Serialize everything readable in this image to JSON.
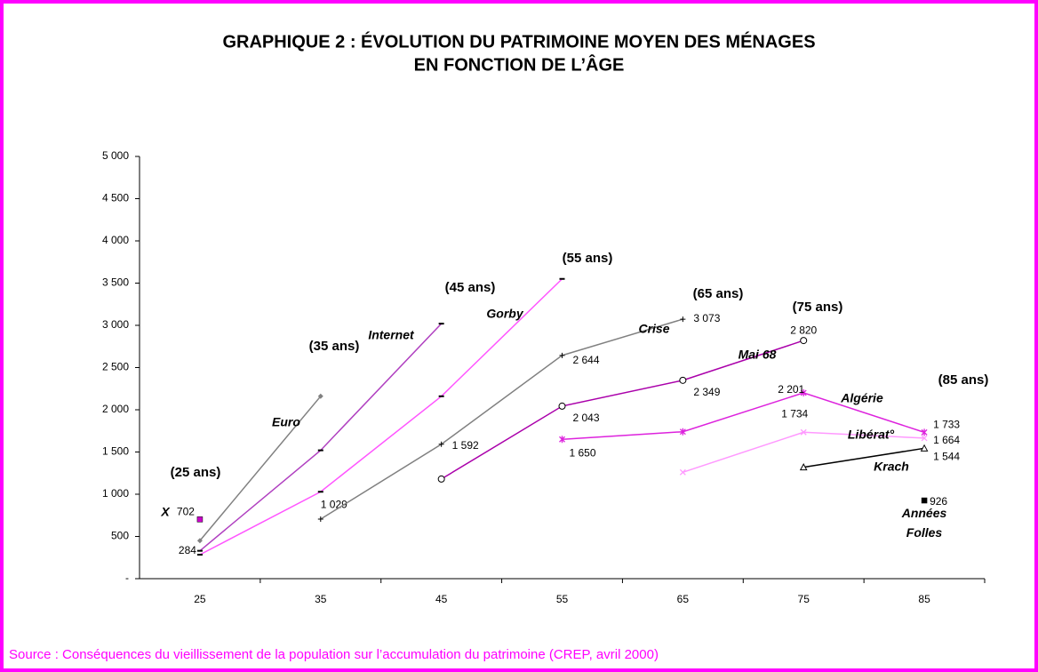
{
  "chart_data": {
    "type": "line",
    "title": [
      "GRAPHIQUE 2 : ÉVOLUTION DU PATRIMOINE MOYEN DES MÉNAGES",
      "EN FONCTION DE L’ÂGE"
    ],
    "categories": [
      "25",
      "35",
      "45",
      "55",
      "65",
      "75",
      "85"
    ],
    "ylim": [
      0,
      5000
    ],
    "yticks": [
      {
        "value": 0,
        "label": "-"
      },
      500,
      {
        "value": 1000,
        "label": "1 000"
      },
      {
        "value": 1500,
        "label": "1 500"
      },
      {
        "value": 2000,
        "label": "2 000"
      },
      {
        "value": 2500,
        "label": "2 500"
      },
      {
        "value": 3000,
        "label": "3 000"
      },
      {
        "value": 3500,
        "label": "3 500"
      },
      {
        "value": 4000,
        "label": "4 000"
      },
      {
        "value": 4500,
        "label": "4 500"
      },
      {
        "value": 5000,
        "label": "5 000"
      }
    ],
    "annotations": [
      "(25 ans)",
      "(35 ans)",
      "(45 ans)",
      "(55 ans)",
      "(65 ans)",
      "(75 ans)",
      "(85 ans)"
    ],
    "series": [
      {
        "name": "X",
        "color": "#cc00cc",
        "marker": "square",
        "values": [
          702,
          null,
          null,
          null,
          null,
          null,
          null
        ],
        "value_labels": [
          "702",
          null,
          null,
          null,
          null,
          null,
          null
        ]
      },
      {
        "name": "Euro",
        "color": "#808080",
        "marker": "diamond",
        "values": [
          450,
          2160,
          null,
          null,
          null,
          null,
          null
        ]
      },
      {
        "name": "Internet",
        "color": "#b040c0",
        "marker": "dash",
        "values": [
          330,
          1520,
          3020,
          null,
          null,
          null,
          null
        ]
      },
      {
        "name": "Gorby",
        "color": "#ff55ff",
        "marker": "dash",
        "values": [
          284,
          1029,
          2160,
          3550,
          null,
          null,
          null
        ],
        "value_labels": [
          "284",
          "1 029",
          null,
          null,
          null,
          null,
          null
        ]
      },
      {
        "name": "Crise",
        "color": "#808080",
        "marker": "plus",
        "values": [
          null,
          705,
          1592,
          2644,
          3073,
          null,
          null
        ],
        "value_labels": [
          null,
          null,
          "1 592",
          "2 644",
          "3 073",
          null,
          null
        ]
      },
      {
        "name": "Mai 68",
        "color": "#aa00aa",
        "marker": "circle",
        "values": [
          null,
          null,
          1180,
          2043,
          2349,
          2820,
          null
        ],
        "value_labels": [
          null,
          null,
          null,
          "2 043",
          "2 349",
          "2 820",
          null
        ]
      },
      {
        "name": "Algérie",
        "color": "#dd22dd",
        "marker": "star",
        "values": [
          null,
          null,
          null,
          1650,
          1740,
          2201,
          1733
        ],
        "value_labels": [
          null,
          null,
          null,
          "1 650",
          null,
          "2 201",
          "1 733"
        ]
      },
      {
        "name": "Libérat°",
        "color": "#ff99ff",
        "marker": "x",
        "values": [
          null,
          null,
          null,
          null,
          1260,
          1734,
          1664
        ],
        "value_labels": [
          null,
          null,
          null,
          null,
          null,
          "1 734",
          "1 664"
        ]
      },
      {
        "name": "Krach",
        "color": "#000000",
        "marker": "triangle",
        "values": [
          null,
          null,
          null,
          null,
          null,
          1320,
          1544
        ],
        "value_labels": [
          null,
          null,
          null,
          null,
          null,
          null,
          "1 544"
        ]
      },
      {
        "name": "Années Folles",
        "color": "#000000",
        "marker": "square",
        "values": [
          null,
          null,
          null,
          null,
          null,
          null,
          926
        ],
        "value_labels": [
          null,
          null,
          null,
          null,
          null,
          null,
          "926"
        ]
      }
    ],
    "source": "Source : Conséquences du vieillissement de la population sur l’accumulation du patrimoine (CREP, avril 2000)"
  }
}
